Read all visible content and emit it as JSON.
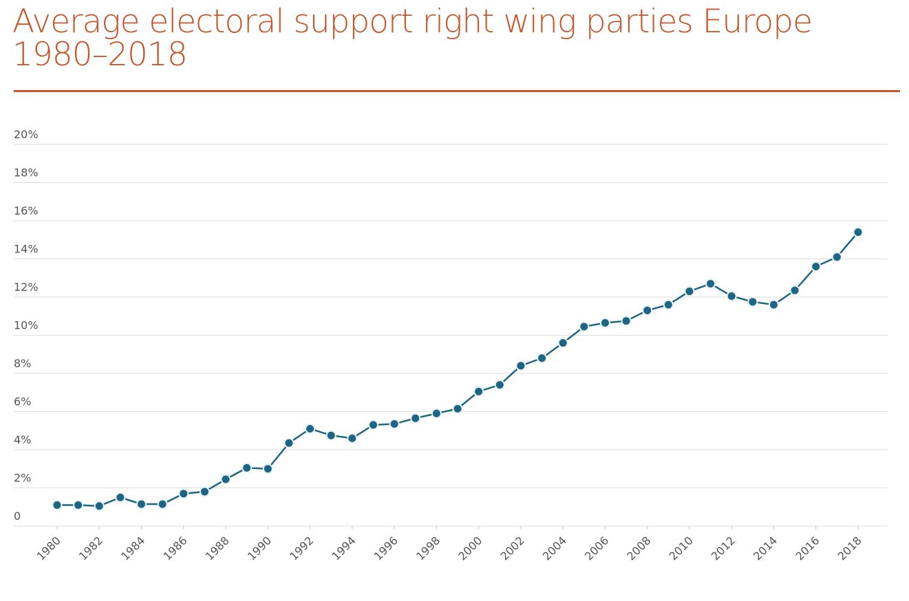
{
  "chart_data": {
    "type": "line",
    "title": "Average electoral support right wing parties Europe 1980–2018",
    "x": [
      1980,
      1981,
      1982,
      1983,
      1984,
      1985,
      1986,
      1987,
      1988,
      1989,
      1990,
      1991,
      1992,
      1993,
      1994,
      1995,
      1996,
      1997,
      1998,
      1999,
      2000,
      2001,
      2002,
      2003,
      2004,
      2005,
      2006,
      2007,
      2008,
      2009,
      2010,
      2011,
      2012,
      2013,
      2014,
      2015,
      2016,
      2017,
      2018
    ],
    "values": [
      1.1,
      1.1,
      1.05,
      1.5,
      1.15,
      1.15,
      1.7,
      1.8,
      2.45,
      3.05,
      3.0,
      4.35,
      5.1,
      4.75,
      4.6,
      5.3,
      5.35,
      5.65,
      5.9,
      6.15,
      7.05,
      7.4,
      8.4,
      8.8,
      9.6,
      10.45,
      10.65,
      10.75,
      11.3,
      11.6,
      12.3,
      12.7,
      12.05,
      11.75,
      11.6,
      12.35,
      13.6,
      14.1,
      15.4
    ],
    "color": "#1b6585",
    "xlim": [
      1980,
      2018
    ],
    "xticks": [
      1980,
      1982,
      1984,
      1986,
      1988,
      1990,
      1992,
      1994,
      1996,
      1998,
      2000,
      2002,
      2004,
      2006,
      2008,
      2010,
      2012,
      2014,
      2016,
      2018
    ],
    "ylim": [
      0,
      20
    ],
    "yticks": [
      0,
      {
        "value": 2,
        "label": "2%"
      },
      {
        "value": 4,
        "label": "4%"
      },
      {
        "value": 6,
        "label": "6%"
      },
      {
        "value": 8,
        "label": "8%"
      },
      {
        "value": 10,
        "label": "10%"
      },
      {
        "value": 12,
        "label": "12%"
      },
      {
        "value": 14,
        "label": "14%"
      },
      {
        "value": 16,
        "label": "16%"
      },
      {
        "value": 18,
        "label": "18%"
      },
      {
        "value": 20,
        "label": "20%"
      }
    ],
    "grid": true
  }
}
